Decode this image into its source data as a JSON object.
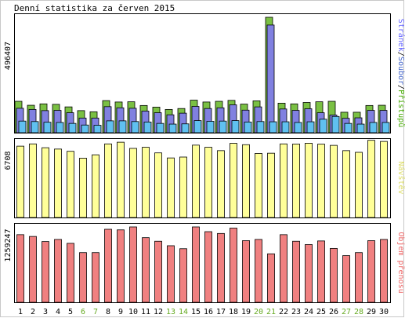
{
  "chart_data": {
    "type": "bar",
    "title": "Denní statistika za červen 2015",
    "categories": [
      "1",
      "2",
      "3",
      "4",
      "5",
      "6",
      "7",
      "8",
      "9",
      "10",
      "11",
      "12",
      "13",
      "14",
      "15",
      "16",
      "17",
      "18",
      "19",
      "20",
      "21",
      "22",
      "23",
      "24",
      "25",
      "26",
      "27",
      "28",
      "29",
      "30"
    ],
    "weekend_days": [
      "6",
      "7",
      "13",
      "14",
      "20",
      "21",
      "27",
      "28"
    ],
    "panels": [
      {
        "id": "hits",
        "ymax_label": "496407",
        "ymax": 496407,
        "legend": [
          {
            "text": "Stránek",
            "color": "#6666ff"
          },
          {
            "text": "/",
            "color": "#000000"
          },
          {
            "text": "Soubor",
            "color": "#4466cc"
          },
          {
            "text": "/",
            "color": "#000000"
          },
          {
            "text": "Přístupů",
            "color": "#44aa00"
          }
        ],
        "series": [
          {
            "name": "Přístupů",
            "color": "#7ac043",
            "values": [
              135000,
              118000,
              124000,
              122000,
              111000,
              95000,
              90000,
              138000,
              132000,
              133000,
              117000,
              110000,
              100000,
              104000,
              140000,
              132000,
              135000,
              139000,
              123000,
              137000,
              496407,
              127000,
              124000,
              130000,
              133000,
              135000,
              88000,
              88000,
              117000,
              118000
            ]
          },
          {
            "name": "Soubor",
            "color": "#8080e0",
            "values": [
              105000,
              100000,
              95000,
              96000,
              86000,
              63000,
              63000,
              112000,
              107000,
              105000,
              93000,
              86000,
              77000,
              84000,
              113000,
              104000,
              107000,
              120000,
              97000,
              111000,
              463000,
              102000,
              96000,
              103000,
              86000,
              76000,
              62000,
              64000,
              96000,
              96000
            ]
          },
          {
            "name": "Stránek",
            "color": "#60c0f0",
            "values": [
              50000,
              48000,
              45000,
              44000,
              40000,
              33000,
              32000,
              51000,
              51000,
              48000,
              46000,
              40000,
              37000,
              38000,
              52000,
              49000,
              50000,
              52000,
              46000,
              48000,
              47000,
              47000,
              44000,
              47000,
              58000,
              70000,
              40000,
              37000,
              44000,
              44000
            ]
          }
        ]
      },
      {
        "id": "visits",
        "ymax_label": "6708",
        "ymax": 6708,
        "legend": [
          {
            "text": "Návštěv",
            "color": "#dddd66"
          }
        ],
        "series": [
          {
            "name": "Návštěv",
            "color": "#ffff99",
            "values": [
              6350,
              6550,
              6210,
              6090,
              5890,
              5280,
              5580,
              6550,
              6700,
              6150,
              6250,
              5750,
              5300,
              5380,
              6440,
              6250,
              5950,
              6600,
              6480,
              5700,
              5720,
              6550,
              6540,
              6610,
              6530,
              6420,
              5950,
              5800,
              6870,
              6770
            ]
          }
        ]
      },
      {
        "id": "volume",
        "ymax_label": "1259247",
        "ymax": 1259247,
        "legend": [
          {
            "text": "Objem přenosu",
            "color": "#ee6666"
          }
        ],
        "series": [
          {
            "name": "Objem přenosu",
            "color": "#f08080",
            "values": [
              1130000,
              1100000,
              1015000,
              1050000,
              985000,
              830000,
              830000,
              1220000,
              1210000,
              1259247,
              1080000,
              1020000,
              945000,
              895000,
              1259247,
              1180000,
              1150000,
              1240000,
              1030000,
              1050000,
              810000,
              1130000,
              1020000,
              965000,
              1025000,
              900000,
              780000,
              830000,
              1030000,
              1050000
            ]
          }
        ]
      }
    ]
  }
}
